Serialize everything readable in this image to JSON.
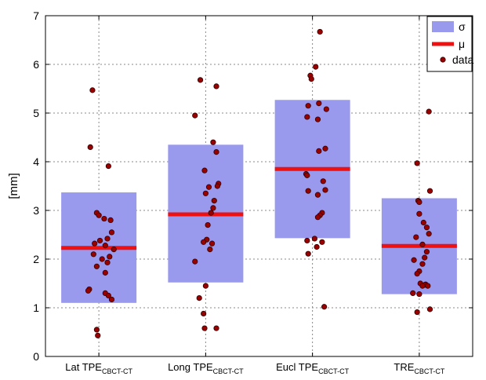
{
  "chart_data": {
    "type": "box-scatter",
    "ylabel": "[mm]",
    "ylim": [
      0,
      7
    ],
    "yticks": [
      0,
      1,
      2,
      3,
      4,
      5,
      6,
      7
    ],
    "grid": true,
    "legend_position": "top-right",
    "legend": [
      {
        "key": "sigma",
        "label": "σ"
      },
      {
        "key": "mu",
        "label": "μ"
      },
      {
        "key": "data",
        "label": "data"
      }
    ],
    "colors": {
      "box": "#9999ee",
      "mean": "#ee1111",
      "point": "#990000",
      "grid": "#888888"
    },
    "categories": [
      {
        "main": "Lat TPE",
        "sub": "CBCT-CT"
      },
      {
        "main": "Long TPE",
        "sub": "CBCT-CT"
      },
      {
        "main": "Eucl TPE",
        "sub": "CBCT-CT"
      },
      {
        "main": "TRE",
        "sub": "CBCT-CT"
      }
    ],
    "series": [
      {
        "category": "Lat TPE CBCT-CT",
        "mean": 2.23,
        "sigma_range": [
          1.1,
          3.37
        ],
        "points": [
          [
            -0.06,
            5.47
          ],
          [
            -0.08,
            4.3
          ],
          [
            0.09,
            3.91
          ],
          [
            -0.02,
            2.95
          ],
          [
            0.0,
            2.9
          ],
          [
            0.05,
            2.83
          ],
          [
            0.11,
            2.8
          ],
          [
            0.12,
            2.55
          ],
          [
            0.08,
            2.42
          ],
          [
            0.01,
            2.38
          ],
          [
            -0.04,
            2.32
          ],
          [
            0.06,
            2.28
          ],
          [
            0.14,
            2.2
          ],
          [
            -0.05,
            2.1
          ],
          [
            0.1,
            2.05
          ],
          [
            0.03,
            2.0
          ],
          [
            0.08,
            1.93
          ],
          [
            -0.02,
            1.85
          ],
          [
            0.06,
            1.72
          ],
          [
            -0.09,
            1.38
          ],
          [
            -0.1,
            1.35
          ],
          [
            0.06,
            1.3
          ],
          [
            0.09,
            1.25
          ],
          [
            0.12,
            1.17
          ],
          [
            -0.02,
            0.55
          ],
          [
            -0.01,
            0.43
          ]
        ]
      },
      {
        "category": "Long TPE CBCT-CT",
        "mean": 2.92,
        "sigma_range": [
          1.52,
          4.35
        ],
        "points": [
          [
            -0.05,
            5.68
          ],
          [
            0.1,
            5.55
          ],
          [
            -0.1,
            4.95
          ],
          [
            0.07,
            4.4
          ],
          [
            0.1,
            4.2
          ],
          [
            -0.01,
            3.82
          ],
          [
            0.12,
            3.55
          ],
          [
            0.11,
            3.5
          ],
          [
            0.03,
            3.48
          ],
          [
            0.0,
            3.35
          ],
          [
            0.08,
            3.2
          ],
          [
            0.07,
            3.05
          ],
          [
            0.05,
            2.95
          ],
          [
            0.02,
            2.7
          ],
          [
            0.01,
            2.4
          ],
          [
            -0.02,
            2.35
          ],
          [
            0.06,
            2.32
          ],
          [
            0.04,
            2.2
          ],
          [
            -0.1,
            1.95
          ],
          [
            0.0,
            1.45
          ],
          [
            -0.06,
            1.2
          ],
          [
            -0.02,
            0.88
          ],
          [
            -0.01,
            0.58
          ],
          [
            0.1,
            0.58
          ]
        ]
      },
      {
        "category": "Eucl TPE CBCT-CT",
        "mean": 3.85,
        "sigma_range": [
          2.43,
          5.27
        ],
        "points": [
          [
            0.07,
            6.67
          ],
          [
            0.03,
            5.95
          ],
          [
            -0.02,
            5.77
          ],
          [
            -0.01,
            5.7
          ],
          [
            0.06,
            5.2
          ],
          [
            -0.04,
            5.15
          ],
          [
            0.13,
            5.08
          ],
          [
            -0.05,
            4.92
          ],
          [
            0.05,
            4.87
          ],
          [
            0.12,
            4.27
          ],
          [
            0.06,
            4.22
          ],
          [
            -0.06,
            3.75
          ],
          [
            -0.05,
            3.72
          ],
          [
            0.1,
            3.6
          ],
          [
            0.12,
            3.42
          ],
          [
            -0.04,
            3.4
          ],
          [
            0.05,
            3.32
          ],
          [
            0.09,
            2.95
          ],
          [
            0.07,
            2.9
          ],
          [
            0.05,
            2.86
          ],
          [
            0.02,
            2.42
          ],
          [
            -0.05,
            2.38
          ],
          [
            0.09,
            2.35
          ],
          [
            0.04,
            2.25
          ],
          [
            -0.04,
            2.11
          ],
          [
            0.11,
            1.02
          ]
        ]
      },
      {
        "category": "TRE CBCT-CT",
        "mean": 2.27,
        "sigma_range": [
          1.28,
          3.25
        ],
        "points": [
          [
            0.09,
            5.03
          ],
          [
            -0.02,
            3.97
          ],
          [
            0.1,
            3.4
          ],
          [
            -0.01,
            3.2
          ],
          [
            0.0,
            3.17
          ],
          [
            0.0,
            2.93
          ],
          [
            0.04,
            2.75
          ],
          [
            0.07,
            2.65
          ],
          [
            0.09,
            2.52
          ],
          [
            -0.03,
            2.45
          ],
          [
            0.03,
            2.3
          ],
          [
            0.07,
            2.15
          ],
          [
            0.05,
            2.03
          ],
          [
            -0.05,
            1.98
          ],
          [
            0.03,
            1.9
          ],
          [
            0.0,
            1.75
          ],
          [
            -0.02,
            1.7
          ],
          [
            0.01,
            1.5
          ],
          [
            0.06,
            1.48
          ],
          [
            0.05,
            1.47
          ],
          [
            0.03,
            1.45
          ],
          [
            0.08,
            1.45
          ],
          [
            -0.06,
            1.3
          ],
          [
            0.0,
            1.28
          ],
          [
            -0.02,
            0.91
          ],
          [
            0.1,
            0.97
          ]
        ]
      }
    ]
  }
}
